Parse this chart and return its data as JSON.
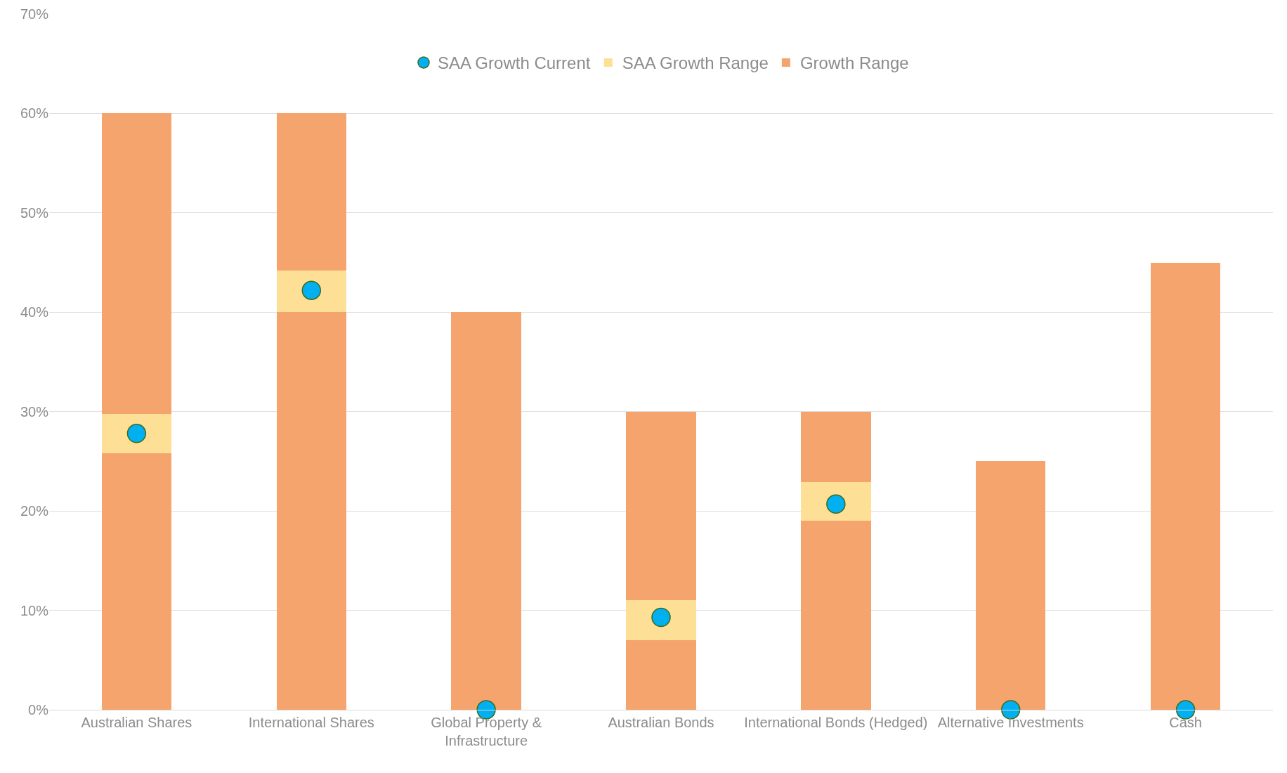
{
  "chart_data": {
    "type": "bar",
    "categories": [
      "Australian Shares",
      "International Shares",
      "Global Property & Infrastructure",
      "Australian Bonds",
      "International Bonds (Hedged)",
      "Alternative Investments",
      "Cash"
    ],
    "series": [
      {
        "name": "Growth Range",
        "color": "#f4a46c",
        "values": [
          25.8,
          40,
          40,
          7,
          19,
          25,
          45
        ]
      },
      {
        "name": "SAA Growth Range",
        "color": "#fde096",
        "values": [
          4,
          4.2,
          null,
          4,
          3.9,
          null,
          null
        ]
      },
      {
        "color": "#f4a46c",
        "values": [
          30.2,
          15.8,
          null,
          19,
          7.1,
          null,
          null
        ]
      },
      {
        "name": "SAA Growth Current",
        "type": "scatter",
        "color": "#00b0f0",
        "values": [
          27.8,
          42.2,
          0,
          9.3,
          20.7,
          0,
          0
        ]
      }
    ],
    "ylim": [
      0,
      70
    ],
    "yticks": [
      {
        "value": 0,
        "label": "0%"
      },
      {
        "value": 10,
        "label": "10%"
      },
      {
        "value": 20,
        "label": "20%"
      },
      {
        "value": 30,
        "label": "30%"
      },
      {
        "value": 40,
        "label": "40%"
      },
      {
        "value": 50,
        "label": "50%"
      },
      {
        "value": 60,
        "label": "60%"
      },
      {
        "value": 70,
        "label": "70%"
      }
    ],
    "stacked": true,
    "grid": "y",
    "legend": "top",
    "marker": "circle"
  }
}
